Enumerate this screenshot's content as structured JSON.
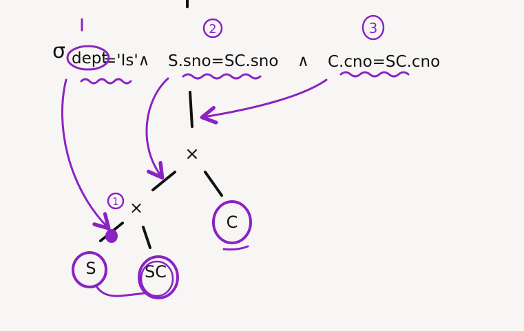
{
  "expression": {
    "sigma": "σ",
    "p1": "dept",
    "p2": "='Is'∧",
    "p3": "S.sno=SC.sno",
    "and2": "∧",
    "p4": "C.cno=SC.cno"
  },
  "step_markers": {
    "top1": "1",
    "circled2": "2",
    "circled3": "3",
    "tree1": "1"
  },
  "tree": {
    "product_top": "×",
    "product_bottom": "×",
    "leaf_s": "S",
    "leaf_sc": "SC",
    "leaf_c": "C"
  },
  "colors": {
    "ink": "#111111",
    "highlight": "#8a22c4",
    "background": "#f8f6f4"
  }
}
